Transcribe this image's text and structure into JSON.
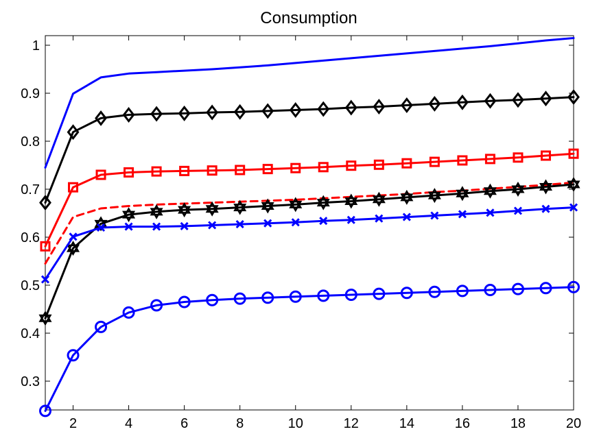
{
  "chart_data": {
    "type": "line",
    "title": "Consumption",
    "xlabel": "",
    "ylabel": "",
    "xlim": [
      1,
      20
    ],
    "ylim": [
      0.24,
      1.02
    ],
    "grid": false,
    "xticks": [
      2,
      4,
      6,
      8,
      10,
      12,
      14,
      16,
      18,
      20
    ],
    "yticks": [
      0.3,
      0.4,
      0.5,
      0.6,
      0.7,
      0.8,
      0.9,
      1
    ],
    "ytick_labels": [
      "0.3",
      "0.4",
      "0.5",
      "0.6",
      "0.7",
      "0.8",
      "0.9",
      "1"
    ],
    "x": [
      1,
      2,
      3,
      4,
      5,
      6,
      7,
      8,
      9,
      10,
      11,
      12,
      13,
      14,
      15,
      16,
      17,
      18,
      19,
      20
    ],
    "series": [
      {
        "color": "#0000ff",
        "dash": "solid",
        "marker": "none",
        "values": [
          0.745,
          0.899,
          0.933,
          0.941,
          0.944,
          0.947,
          0.95,
          0.954,
          0.958,
          0.963,
          0.968,
          0.973,
          0.978,
          0.983,
          0.988,
          0.993,
          0.998,
          1.004,
          1.01,
          1.015
        ]
      },
      {
        "color": "#000000",
        "dash": "solid",
        "marker": "diamond",
        "values": [
          0.672,
          0.819,
          0.848,
          0.855,
          0.857,
          0.858,
          0.86,
          0.861,
          0.863,
          0.865,
          0.867,
          0.87,
          0.872,
          0.875,
          0.878,
          0.881,
          0.884,
          0.886,
          0.889,
          0.892
        ]
      },
      {
        "color": "#ff0000",
        "dash": "solid",
        "marker": "square",
        "values": [
          0.581,
          0.704,
          0.73,
          0.735,
          0.737,
          0.738,
          0.739,
          0.74,
          0.742,
          0.744,
          0.746,
          0.749,
          0.751,
          0.754,
          0.757,
          0.76,
          0.763,
          0.766,
          0.77,
          0.774
        ]
      },
      {
        "color": "#ff0000",
        "dash": "dashed",
        "marker": "none",
        "values": [
          0.545,
          0.642,
          0.66,
          0.665,
          0.668,
          0.67,
          0.672,
          0.674,
          0.676,
          0.678,
          0.681,
          0.684,
          0.687,
          0.69,
          0.694,
          0.697,
          0.701,
          0.705,
          0.709,
          0.714
        ]
      },
      {
        "color": "#000000",
        "dash": "solid",
        "marker": "hexagram",
        "values": [
          0.431,
          0.577,
          0.628,
          0.647,
          0.653,
          0.657,
          0.659,
          0.662,
          0.665,
          0.668,
          0.672,
          0.675,
          0.679,
          0.683,
          0.687,
          0.691,
          0.696,
          0.7,
          0.705,
          0.71
        ]
      },
      {
        "color": "#0000ff",
        "dash": "solid",
        "marker": "x",
        "values": [
          0.512,
          0.601,
          0.62,
          0.622,
          0.622,
          0.623,
          0.625,
          0.627,
          0.629,
          0.631,
          0.634,
          0.636,
          0.639,
          0.642,
          0.645,
          0.648,
          0.651,
          0.655,
          0.659,
          0.662
        ]
      },
      {
        "color": "#0000ff",
        "dash": "solid",
        "marker": "circle",
        "values": [
          0.238,
          0.354,
          0.413,
          0.443,
          0.458,
          0.465,
          0.469,
          0.472,
          0.474,
          0.476,
          0.478,
          0.48,
          0.482,
          0.484,
          0.486,
          0.488,
          0.49,
          0.492,
          0.494,
          0.496
        ]
      }
    ]
  }
}
